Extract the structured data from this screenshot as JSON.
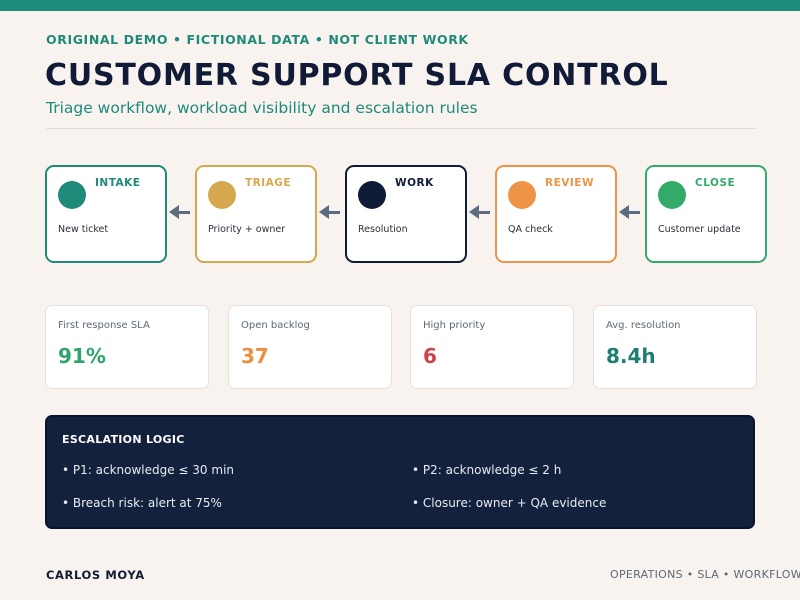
{
  "header": {
    "eyebrow": "ORIGINAL DEMO  •  FICTIONAL DATA  •  NOT CLIENT WORK",
    "title": "CUSTOMER SUPPORT SLA CONTROL",
    "subtitle": "Triage workflow, workload visibility and escalation rules"
  },
  "workflow": [
    {
      "label": "INTAKE",
      "desc": "New ticket",
      "color": "#1e8a7a"
    },
    {
      "label": "TRIAGE",
      "desc": "Priority + owner",
      "color": "#d6a84e"
    },
    {
      "label": "WORK",
      "desc": "Resolution",
      "color": "#0f1c38"
    },
    {
      "label": "REVIEW",
      "desc": "QA check",
      "color": "#ee9446"
    },
    {
      "label": "CLOSE",
      "desc": "Customer update",
      "color": "#33aa6a"
    }
  ],
  "kpis": [
    {
      "label": "First response SLA",
      "value": "91%",
      "color": "#2ea46a"
    },
    {
      "label": "Open backlog",
      "value": "37",
      "color": "#ee8e3f"
    },
    {
      "label": "High priority",
      "value": "6",
      "color": "#d0404c"
    },
    {
      "label": "Avg. resolution",
      "value": "8.4h",
      "color": "#1e7e74"
    }
  ],
  "escalation": {
    "title": "ESCALATION LOGIC",
    "rules": [
      "• P1: acknowledge ≤ 30 min",
      "• P2: acknowledge ≤ 2 h",
      "• Breach risk: alert at 75%",
      "• Closure: owner + QA evidence"
    ]
  },
  "footer": {
    "author": "CARLOS MOYA",
    "tags": "OPERATIONS • SLA • WORKFLOW DESIGN"
  }
}
